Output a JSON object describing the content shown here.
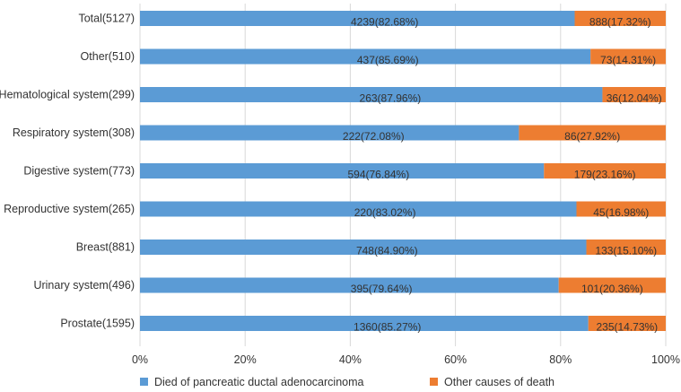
{
  "chart_data": {
    "type": "bar",
    "orientation": "horizontal",
    "stacked": true,
    "percent_stacked": true,
    "title": "",
    "xlabel": "",
    "ylabel": "",
    "xlim": [
      0,
      100
    ],
    "grid": true,
    "legend_position": "bottom",
    "x_ticks": [
      "0%",
      "20%",
      "40%",
      "60%",
      "80%",
      "100%"
    ],
    "categories": [
      "Total(5127)",
      "Other(510)",
      "Hematological system(299)",
      "Respiratory system(308)",
      "Digestive system(773)",
      "Reproductive system(265)",
      "Breast(881)",
      "Urinary system(496)",
      "Prostate(1595)"
    ],
    "series": [
      {
        "name": "Died of pancreatic ductal adenocarcinoma",
        "color": "#5b9bd5",
        "percents": [
          82.68,
          85.69,
          87.96,
          72.08,
          76.84,
          83.02,
          84.9,
          79.64,
          85.27
        ],
        "labels": [
          "4239(82.68%)",
          "437(85.69%)",
          "263(87.96%)",
          "222(72.08%)",
          "594(76.84%)",
          "220(83.02%)",
          "748(84.90%)",
          "395(79.64%)",
          "1360(85.27%)"
        ]
      },
      {
        "name": "Other causes of death",
        "color": "#ed7d31",
        "percents": [
          17.32,
          14.31,
          12.04,
          27.92,
          23.16,
          16.98,
          15.1,
          20.36,
          14.73
        ],
        "labels": [
          "888(17.32%)",
          "73(14.31%)",
          "36(12.04%)",
          "86(27.92%)",
          "179(23.16%)",
          "45(16.98%)",
          "133(15.10%)",
          "101(20.36%)",
          "235(14.73%)"
        ]
      }
    ]
  }
}
